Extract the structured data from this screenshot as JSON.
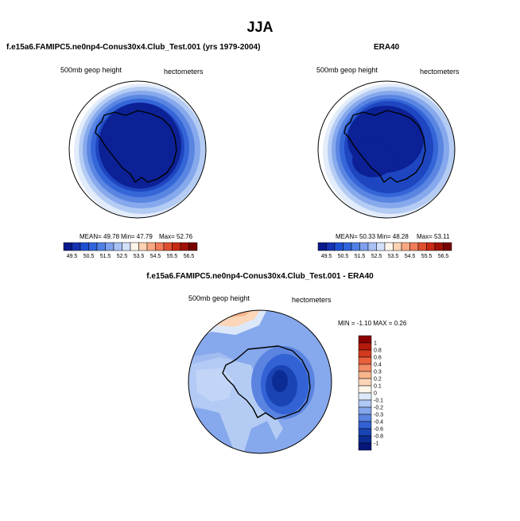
{
  "title": "JJA",
  "panels": {
    "model": {
      "title": "f.e15a6.FAMIPC5.ne0np4-Conus30x4.Club_Test.001 (yrs 1979-2004)",
      "left_label": "500mb geop height",
      "right_label": "hectometers",
      "stats": {
        "mean": "MEAN=  49.78",
        "min": "Min=  47.79",
        "max": "Max=  52.76"
      }
    },
    "obs": {
      "title": "ERA40",
      "left_label": "500mb geop height",
      "right_label": "hectometers",
      "stats": {
        "mean": "MEAN=  50.33",
        "min": "Min=  48.28",
        "max": "Max=  53.11"
      }
    },
    "diff": {
      "title": "f.e15a6.FAMIPC5.ne0np4-Conus30x4.Club_Test.001 - ERA40",
      "left_label": "500mb geop height",
      "right_label": "hectometers",
      "minmax": "MIN = -1.10 MAX =  0.26"
    }
  },
  "colorbar_abs": {
    "labels": [
      "49.5",
      "50.5",
      "51.5",
      "52.5",
      "53.5",
      "54.5",
      "55.5",
      "56.5"
    ],
    "colors": [
      "#0a1a8c",
      "#1432b4",
      "#1e50d2",
      "#3264dc",
      "#5080e6",
      "#7ea0ee",
      "#a8c0f4",
      "#d2e0fa",
      "#fff5ea",
      "#fcd2b4",
      "#f8a882",
      "#f07c5a",
      "#e05030",
      "#c82a14",
      "#a01206",
      "#780000"
    ]
  },
  "colorbar_diff": {
    "labels": [
      "1",
      "0.8",
      "0.6",
      "0.4",
      "0.3",
      "0.2",
      "0.1",
      "0",
      "-0.1",
      "-0.2",
      "-0.3",
      "-0.4",
      "-0.6",
      "-0.8",
      "-1"
    ],
    "colors": [
      "#8a0000",
      "#b41a0a",
      "#d23a1e",
      "#e8603c",
      "#f28c64",
      "#f8b48c",
      "#fcd6b8",
      "#fff4ea",
      "#dce8fa",
      "#b0c8f4",
      "#84a6ea",
      "#5a84e0",
      "#3262d4",
      "#1a44b4",
      "#0c2c94",
      "#04167a"
    ]
  }
}
